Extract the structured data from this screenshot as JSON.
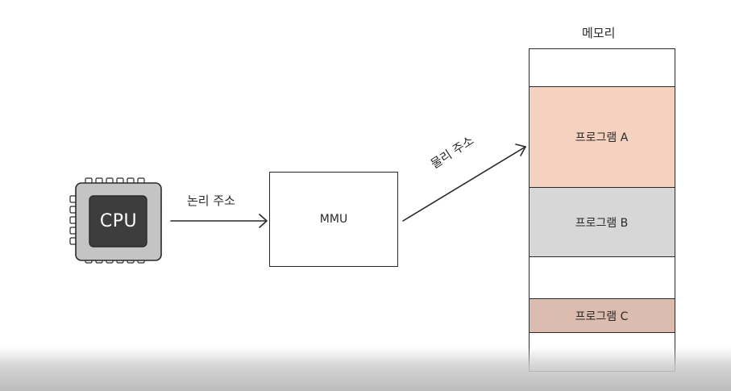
{
  "diagram": {
    "cpu": {
      "label": "CPU"
    },
    "logical_address_label": "논리 주소",
    "mmu": {
      "label": "MMU"
    },
    "physical_address_label": "물리 주소",
    "memory": {
      "title": "메모리",
      "program_a": "프로그램 A",
      "program_b": "프로그램 B",
      "program_c": "프로그램 C"
    }
  },
  "colors": {
    "program_a": "#f5d1c0",
    "program_b": "#d7d7d7",
    "program_c": "#dcbcae",
    "cpu_body": "#c4c4c4",
    "cpu_die": "#3d3d3d"
  }
}
